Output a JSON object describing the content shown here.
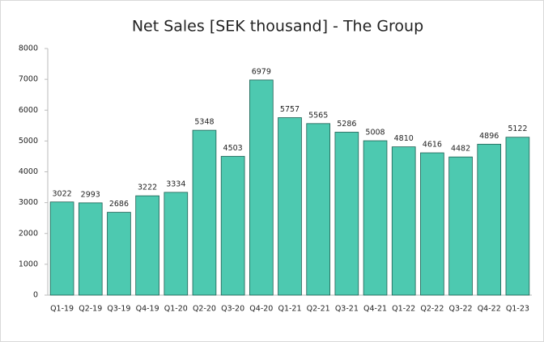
{
  "chart_data": {
    "type": "bar",
    "title": "Net Sales [SEK thousand] - The Group",
    "categories": [
      "Q1-19",
      "Q2-19",
      "Q3-19",
      "Q4-19",
      "Q1-20",
      "Q2-20",
      "Q3-20",
      "Q4-20",
      "Q1-21",
      "Q2-21",
      "Q3-21",
      "Q4-21",
      "Q1-22",
      "Q2-22",
      "Q3-22",
      "Q4-22",
      "Q1-23"
    ],
    "values": [
      3022,
      2993,
      2686,
      3222,
      3334,
      5348,
      4503,
      6979,
      5757,
      5565,
      5286,
      5008,
      4810,
      4616,
      4482,
      4896,
      5122
    ],
    "color": "#4dc9b0",
    "ylim": [
      0,
      8000
    ],
    "yticks": [
      0,
      1000,
      2000,
      3000,
      4000,
      5000,
      6000,
      7000,
      8000
    ],
    "grid": false
  }
}
